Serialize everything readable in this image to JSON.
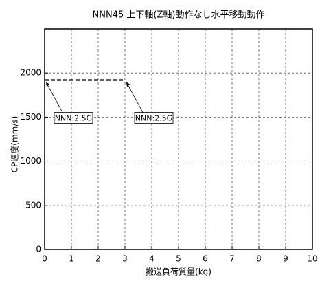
{
  "chart_data": {
    "type": "line",
    "title": "NNN45 上下軸(Z軸)動作なし水平移動動作",
    "x_label": "搬送負荷質量(kg)",
    "y_label": "CP速度(mm/s)",
    "xlim": [
      0,
      10
    ],
    "xticks": [
      0,
      1,
      2,
      3,
      4,
      5,
      6,
      7,
      8,
      9,
      10
    ],
    "ylim": [
      0,
      2500
    ],
    "yticks": [
      0,
      500,
      1000,
      1500,
      2000
    ],
    "grid": true,
    "x": [
      0,
      3
    ],
    "series": [
      {
        "name": "NNN:2.5G",
        "color": "#000000",
        "values": [
          1920,
          1920
        ]
      }
    ],
    "annotations": [
      {
        "text": "NNN:2.5G",
        "x": 0,
        "y": 1920
      },
      {
        "text": "NNN:2.5G",
        "x": 3,
        "y": 1920
      }
    ]
  }
}
